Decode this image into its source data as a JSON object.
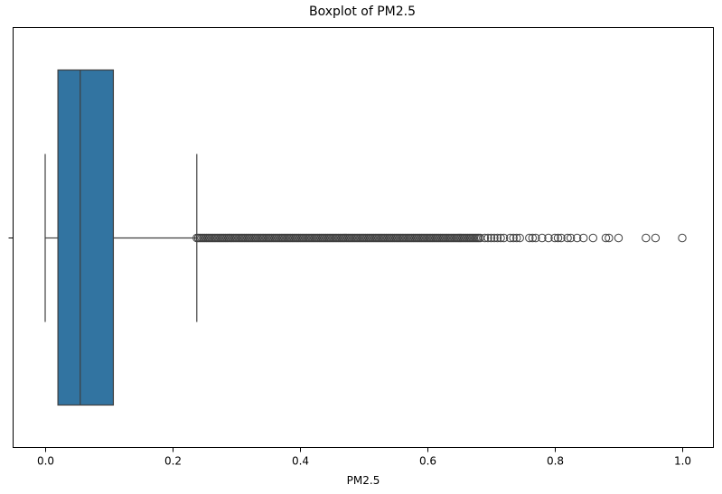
{
  "chart_data": {
    "type": "boxplot",
    "title": "Boxplot of PM2.5",
    "xlabel": "PM2.5",
    "ylabel": "",
    "orientation": "horizontal",
    "xlim": [
      -0.05,
      1.05
    ],
    "x_ticks": [
      0.0,
      0.2,
      0.4,
      0.6,
      0.8,
      1.0
    ],
    "x_tick_labels": [
      "0.0",
      "0.2",
      "0.4",
      "0.6",
      "0.8",
      "1.0"
    ],
    "grid": false,
    "box": {
      "whisker_low": 0.0,
      "q1": 0.02,
      "median": 0.055,
      "q3": 0.107,
      "whisker_high": 0.238
    },
    "outliers": [
      0.69,
      0.695,
      0.7,
      0.705,
      0.71,
      0.715,
      0.72,
      0.73,
      0.735,
      0.74,
      0.745,
      0.76,
      0.765,
      0.77,
      0.78,
      0.79,
      0.8,
      0.805,
      0.81,
      0.82,
      0.825,
      0.835,
      0.845,
      0.86,
      0.88,
      0.885,
      0.9,
      0.943,
      0.958,
      1.0
    ],
    "outlier_dense_range": [
      0.238,
      0.685
    ],
    "colors": {
      "box_fill": "#3274a1",
      "lines": "#3f3f3f"
    }
  }
}
